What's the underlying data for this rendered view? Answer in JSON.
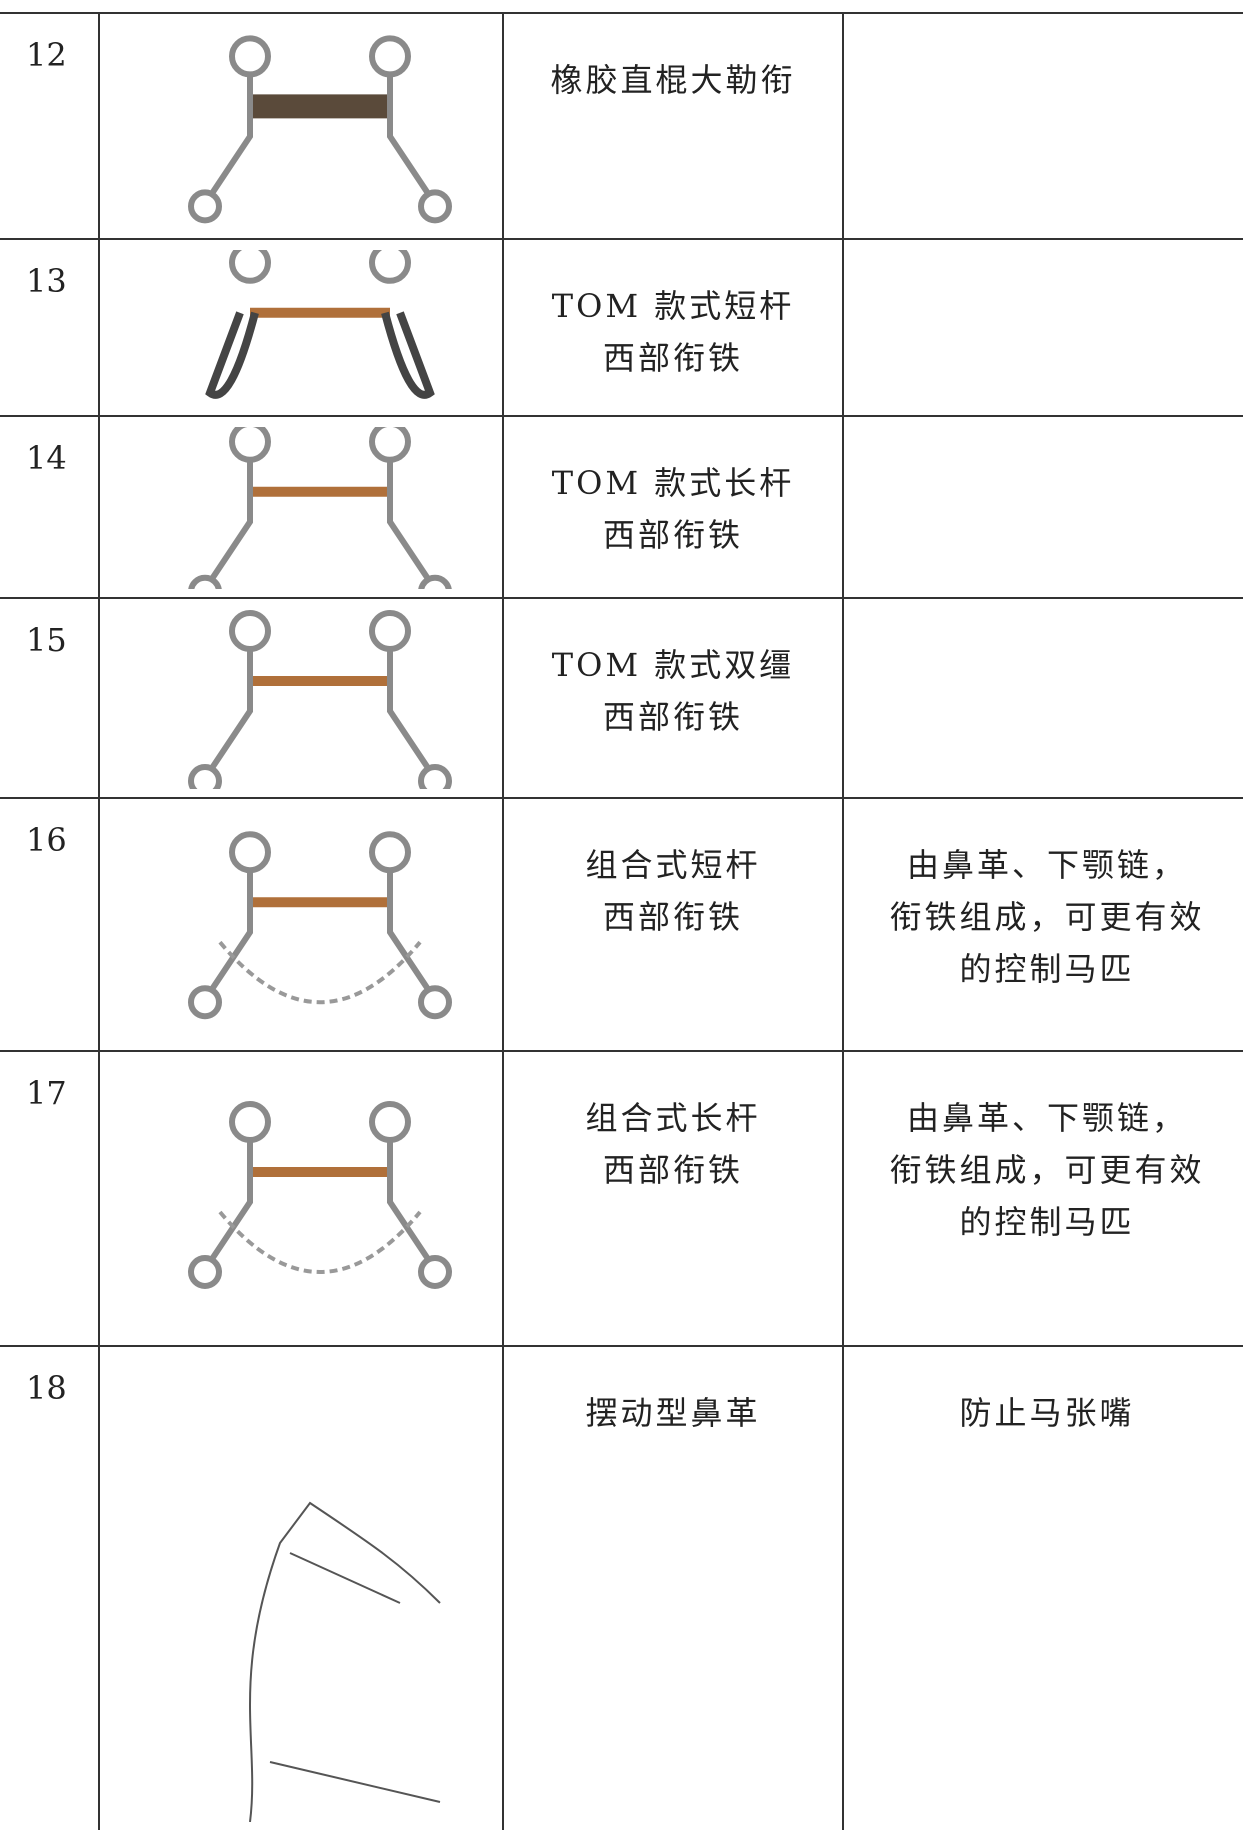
{
  "table": {
    "rows": [
      {
        "number": "12",
        "name": [
          "橡胶直棍大勒衔"
        ],
        "description": []
      },
      {
        "number": "13",
        "name": [
          "TOM 款式短杆",
          "西部衔铁"
        ],
        "description": []
      },
      {
        "number": "14",
        "name": [
          "TOM 款式长杆",
          "西部衔铁"
        ],
        "description": []
      },
      {
        "number": "15",
        "name": [
          "TOM 款式双缰",
          "西部衔铁"
        ],
        "description": []
      },
      {
        "number": "16",
        "name": [
          "组合式短杆",
          "西部衔铁"
        ],
        "description": [
          "由鼻革、下颚链，",
          "衔铁组成，可更有效",
          "的控制马匹"
        ]
      },
      {
        "number": "17",
        "name": [
          "组合式长杆",
          "西部衔铁"
        ],
        "description": [
          "由鼻革、下颚链，",
          "衔铁组成，可更有效",
          "的控制马匹"
        ]
      },
      {
        "number": "18",
        "name": [
          "摆动型鼻革"
        ],
        "description": [
          "防止马张嘴"
        ]
      }
    ]
  }
}
